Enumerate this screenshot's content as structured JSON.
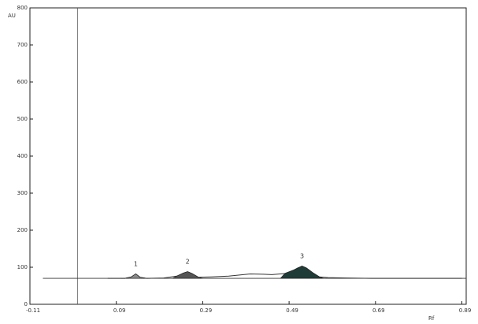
{
  "chart_data": {
    "type": "line",
    "title": "",
    "xlabel": "Rf",
    "ylabel": "AU",
    "xlim": [
      -0.11,
      0.9
    ],
    "ylim": [
      0,
      800
    ],
    "x_ticks": [
      -0.11,
      0.09,
      0.29,
      0.49,
      0.69,
      0.89
    ],
    "x_tick_labels": [
      "-0.11",
      "0.09",
      "0.29",
      "0.49",
      "0.69",
      "0.89"
    ],
    "y_ticks": [
      0,
      100,
      200,
      300,
      400,
      500,
      600,
      700,
      800
    ],
    "y_tick_labels": [
      "0",
      "100",
      "200",
      "300",
      "400",
      "500",
      "600",
      "700",
      "800"
    ],
    "start_line_x": 0.0,
    "baseline_y": 70,
    "series": [
      {
        "name": "",
        "x": [
          0.07,
          0.11,
          0.125,
          0.135,
          0.145,
          0.16,
          0.2,
          0.23,
          0.245,
          0.255,
          0.265,
          0.28,
          0.31,
          0.35,
          0.4,
          0.43,
          0.45,
          0.48,
          0.5,
          0.51,
          0.52,
          0.53,
          0.545,
          0.56,
          0.58,
          0.62,
          0.68,
          0.74,
          0.8,
          0.86,
          0.89
        ],
        "values": [
          70,
          70,
          74,
          82,
          73,
          70,
          71,
          76,
          84,
          88,
          83,
          73,
          74,
          76,
          82,
          81,
          80,
          83,
          92,
          98,
          103,
          98,
          85,
          74,
          72,
          71,
          70,
          70,
          70,
          70,
          70
        ]
      }
    ],
    "peaks": [
      {
        "label": "1",
        "x": 0.135,
        "y": 82
      },
      {
        "label": "2",
        "x": 0.255,
        "y": 88
      },
      {
        "label": "3",
        "x": 0.52,
        "y": 103
      }
    ],
    "grid": false,
    "legend": "none"
  }
}
